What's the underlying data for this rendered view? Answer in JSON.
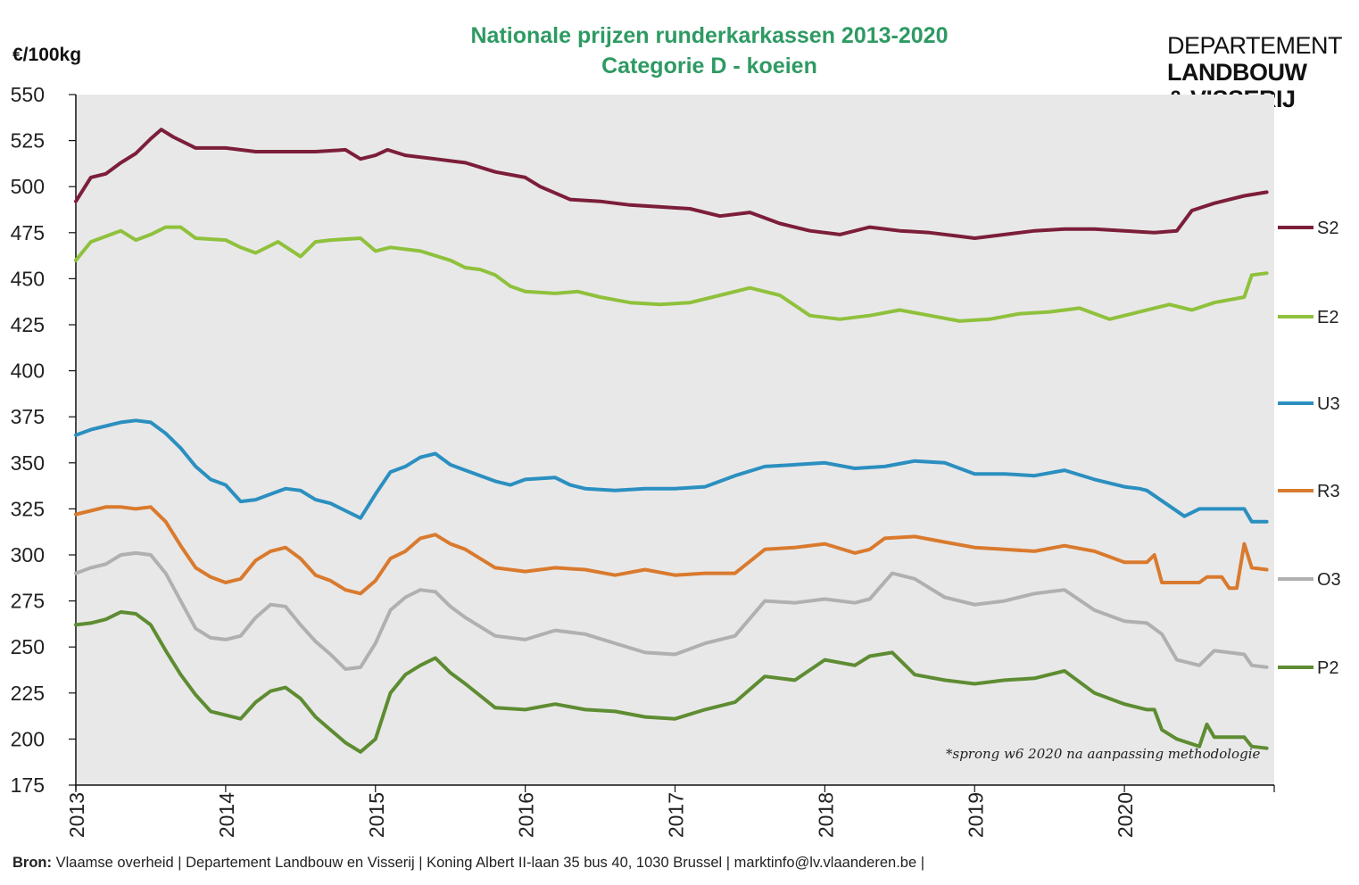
{
  "header": {
    "title_line1": "Nationale prijzen runderkarkassen 2013-2020",
    "title_line2": "Categorie D - koeien",
    "unit": "€/100kg"
  },
  "logo": {
    "line1": "DEPARTEMENT",
    "line2": "LANDBOUW",
    "line3": "& VISSERIJ"
  },
  "note": "*sprong w6 2020 na aanpassing methodologie",
  "footer": {
    "label": "Bron:",
    "text": "Vlaamse overheid  | Departement Landbouw en Visserij | Koning Albert II-laan 35 bus 40, 1030 Brussel  |  marktinfo@lv.vlaanderen.be  |"
  },
  "colors": {
    "plot_bg": "#e8e8e8",
    "axis": "#111111",
    "title": "#2e9a63"
  },
  "chart_data": {
    "type": "line",
    "title": "Nationale prijzen runderkarkassen 2013-2020",
    "subtitle": "Categorie D - koeien",
    "ylabel": "€/100kg",
    "ylim": [
      175,
      550
    ],
    "yticks": [
      175,
      200,
      225,
      250,
      275,
      300,
      325,
      350,
      375,
      400,
      425,
      450,
      475,
      500,
      525,
      550
    ],
    "xlim": [
      2013.0,
      2021.0
    ],
    "xticks": [
      "2013",
      "2014",
      "2015",
      "2016",
      "2017",
      "2018",
      "2019",
      "2020"
    ],
    "grid": false,
    "legend_position": "right",
    "series": [
      {
        "name": "S2",
        "color": "#7c1e3a",
        "x": [
          2013.0,
          2013.1,
          2013.2,
          2013.3,
          2013.4,
          2013.5,
          2013.57,
          2013.65,
          2013.8,
          2014.0,
          2014.2,
          2014.4,
          2014.6,
          2014.8,
          2014.9,
          2015.0,
          2015.08,
          2015.2,
          2015.4,
          2015.6,
          2015.8,
          2016.0,
          2016.1,
          2016.3,
          2016.5,
          2016.7,
          2016.9,
          2017.1,
          2017.3,
          2017.5,
          2017.7,
          2017.9,
          2018.1,
          2018.3,
          2018.5,
          2018.7,
          2018.9,
          2019.0,
          2019.2,
          2019.4,
          2019.6,
          2019.8,
          2020.0,
          2020.2,
          2020.35,
          2020.45,
          2020.6,
          2020.8,
          2020.95
        ],
        "y": [
          492,
          505,
          507,
          513,
          518,
          526,
          531,
          527,
          521,
          521,
          519,
          519,
          519,
          520,
          515,
          517,
          520,
          517,
          515,
          513,
          508,
          505,
          500,
          493,
          492,
          490,
          489,
          488,
          484,
          486,
          480,
          476,
          474,
          478,
          476,
          475,
          473,
          472,
          474,
          476,
          477,
          477,
          476,
          475,
          476,
          487,
          491,
          495,
          497
        ]
      },
      {
        "name": "E2",
        "color": "#8fc13c",
        "x": [
          2013.0,
          2013.1,
          2013.2,
          2013.3,
          2013.4,
          2013.5,
          2013.6,
          2013.7,
          2013.8,
          2014.0,
          2014.1,
          2014.2,
          2014.35,
          2014.5,
          2014.6,
          2014.7,
          2014.9,
          2015.0,
          2015.1,
          2015.3,
          2015.5,
          2015.6,
          2015.7,
          2015.8,
          2015.9,
          2016.0,
          2016.2,
          2016.35,
          2016.5,
          2016.7,
          2016.9,
          2017.1,
          2017.3,
          2017.5,
          2017.7,
          2017.9,
          2018.1,
          2018.3,
          2018.5,
          2018.7,
          2018.9,
          2019.1,
          2019.3,
          2019.5,
          2019.7,
          2019.9,
          2020.1,
          2020.3,
          2020.45,
          2020.6,
          2020.8,
          2020.85,
          2020.95
        ],
        "y": [
          460,
          470,
          473,
          476,
          471,
          474,
          478,
          478,
          472,
          471,
          467,
          464,
          470,
          462,
          470,
          471,
          472,
          465,
          467,
          465,
          460,
          456,
          455,
          452,
          446,
          443,
          442,
          443,
          440,
          437,
          436,
          437,
          441,
          445,
          441,
          430,
          428,
          430,
          433,
          430,
          427,
          428,
          431,
          432,
          434,
          428,
          432,
          436,
          433,
          437,
          440,
          452,
          453
        ]
      },
      {
        "name": "U3",
        "color": "#2b8fc0",
        "x": [
          2013.0,
          2013.1,
          2013.2,
          2013.3,
          2013.4,
          2013.5,
          2013.6,
          2013.7,
          2013.8,
          2013.9,
          2014.0,
          2014.1,
          2014.2,
          2014.3,
          2014.4,
          2014.5,
          2014.6,
          2014.7,
          2014.8,
          2014.9,
          2015.0,
          2015.1,
          2015.2,
          2015.3,
          2015.4,
          2015.5,
          2015.6,
          2015.8,
          2015.9,
          2016.0,
          2016.2,
          2016.3,
          2016.4,
          2016.6,
          2016.8,
          2017.0,
          2017.2,
          2017.4,
          2017.6,
          2017.8,
          2018.0,
          2018.2,
          2018.4,
          2018.6,
          2018.8,
          2019.0,
          2019.2,
          2019.4,
          2019.6,
          2019.8,
          2020.0,
          2020.1,
          2020.15,
          2020.4,
          2020.5,
          2020.8,
          2020.85,
          2020.95
        ],
        "y": [
          365,
          368,
          370,
          372,
          373,
          372,
          366,
          358,
          348,
          341,
          338,
          329,
          330,
          333,
          336,
          335,
          330,
          328,
          324,
          320,
          333,
          345,
          348,
          353,
          355,
          349,
          346,
          340,
          338,
          341,
          342,
          338,
          336,
          335,
          336,
          336,
          337,
          343,
          348,
          349,
          350,
          347,
          348,
          351,
          350,
          344,
          344,
          343,
          346,
          341,
          337,
          336,
          335,
          321,
          325,
          325,
          318,
          318
        ]
      },
      {
        "name": "R3",
        "color": "#d97a2e",
        "x": [
          2013.0,
          2013.1,
          2013.2,
          2013.3,
          2013.4,
          2013.5,
          2013.6,
          2013.7,
          2013.8,
          2013.9,
          2014.0,
          2014.1,
          2014.2,
          2014.3,
          2014.4,
          2014.5,
          2014.6,
          2014.7,
          2014.8,
          2014.9,
          2015.0,
          2015.1,
          2015.2,
          2015.3,
          2015.4,
          2015.5,
          2015.6,
          2015.8,
          2016.0,
          2016.2,
          2016.4,
          2016.6,
          2016.8,
          2017.0,
          2017.2,
          2017.4,
          2017.6,
          2017.8,
          2018.0,
          2018.2,
          2018.3,
          2018.4,
          2018.6,
          2018.8,
          2019.0,
          2019.2,
          2019.4,
          2019.6,
          2019.8,
          2020.0,
          2020.15,
          2020.2,
          2020.25,
          2020.5,
          2020.55,
          2020.65,
          2020.7,
          2020.75,
          2020.8,
          2020.85,
          2020.95
        ],
        "y": [
          322,
          324,
          326,
          326,
          325,
          326,
          318,
          305,
          293,
          288,
          285,
          287,
          297,
          302,
          304,
          298,
          289,
          286,
          281,
          279,
          286,
          298,
          302,
          309,
          311,
          306,
          303,
          293,
          291,
          293,
          292,
          289,
          292,
          289,
          290,
          290,
          303,
          304,
          306,
          301,
          303,
          309,
          310,
          307,
          304,
          303,
          302,
          305,
          302,
          296,
          296,
          300,
          285,
          285,
          288,
          288,
          282,
          282,
          306,
          293,
          292
        ]
      },
      {
        "name": "O3",
        "color": "#b0b0b0",
        "x": [
          2013.0,
          2013.1,
          2013.2,
          2013.3,
          2013.4,
          2013.5,
          2013.6,
          2013.7,
          2013.8,
          2013.9,
          2014.0,
          2014.1,
          2014.2,
          2014.3,
          2014.4,
          2014.5,
          2014.6,
          2014.7,
          2014.8,
          2014.9,
          2015.0,
          2015.1,
          2015.2,
          2015.3,
          2015.4,
          2015.5,
          2015.6,
          2015.8,
          2016.0,
          2016.2,
          2016.4,
          2016.6,
          2016.8,
          2017.0,
          2017.2,
          2017.4,
          2017.6,
          2017.8,
          2018.0,
          2018.2,
          2018.3,
          2018.45,
          2018.6,
          2018.8,
          2019.0,
          2019.2,
          2019.4,
          2019.6,
          2019.8,
          2020.0,
          2020.15,
          2020.25,
          2020.35,
          2020.5,
          2020.6,
          2020.8,
          2020.85,
          2020.95
        ],
        "y": [
          290,
          293,
          295,
          300,
          301,
          300,
          290,
          275,
          260,
          255,
          254,
          256,
          266,
          273,
          272,
          262,
          253,
          246,
          238,
          239,
          252,
          270,
          277,
          281,
          280,
          272,
          266,
          256,
          254,
          259,
          257,
          252,
          247,
          246,
          252,
          256,
          275,
          274,
          276,
          274,
          276,
          290,
          287,
          277,
          273,
          275,
          279,
          281,
          270,
          264,
          263,
          257,
          243,
          240,
          248,
          246,
          240,
          239
        ]
      },
      {
        "name": "P2",
        "color": "#5e8c32",
        "x": [
          2013.0,
          2013.1,
          2013.2,
          2013.3,
          2013.4,
          2013.5,
          2013.6,
          2013.7,
          2013.8,
          2013.9,
          2014.0,
          2014.1,
          2014.2,
          2014.3,
          2014.4,
          2014.5,
          2014.6,
          2014.7,
          2014.8,
          2014.9,
          2015.0,
          2015.1,
          2015.2,
          2015.3,
          2015.4,
          2015.5,
          2015.6,
          2015.8,
          2016.0,
          2016.2,
          2016.4,
          2016.6,
          2016.8,
          2017.0,
          2017.2,
          2017.4,
          2017.6,
          2017.8,
          2018.0,
          2018.2,
          2018.3,
          2018.45,
          2018.6,
          2018.8,
          2019.0,
          2019.2,
          2019.4,
          2019.6,
          2019.8,
          2020.0,
          2020.15,
          2020.2,
          2020.25,
          2020.35,
          2020.5,
          2020.55,
          2020.6,
          2020.8,
          2020.85,
          2020.95
        ],
        "y": [
          262,
          263,
          265,
          269,
          268,
          262,
          248,
          235,
          224,
          215,
          213,
          211,
          220,
          226,
          228,
          222,
          212,
          205,
          198,
          193,
          200,
          225,
          235,
          240,
          244,
          236,
          230,
          217,
          216,
          219,
          216,
          215,
          212,
          211,
          216,
          220,
          234,
          232,
          243,
          240,
          245,
          247,
          235,
          232,
          230,
          232,
          233,
          237,
          225,
          219,
          216,
          216,
          205,
          200,
          196,
          208,
          201,
          201,
          196,
          195
        ]
      }
    ]
  }
}
